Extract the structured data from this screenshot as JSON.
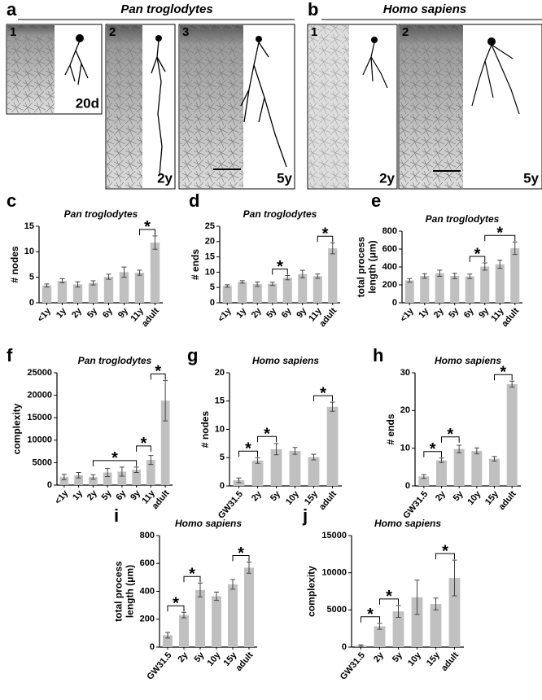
{
  "figure": {
    "panels": [
      {
        "letter": "a",
        "title": "Pan troglodytes"
      },
      {
        "letter": "b",
        "title": "Homo sapiens"
      }
    ],
    "images": [
      {
        "number": "1",
        "age": "20d"
      },
      {
        "number": "2",
        "age": "2y"
      },
      {
        "number": "3",
        "age": "5y"
      },
      {
        "number": "1",
        "age": "2y"
      },
      {
        "number": "2",
        "age": "5y"
      }
    ]
  },
  "chart_data": [
    {
      "type": "bar",
      "panel": "c",
      "title": "Pan troglodytes",
      "y_label": "# nodes",
      "categories": [
        "<1y",
        "1y",
        "2y",
        "5y",
        "6y",
        "9y",
        "11y",
        "adult"
      ],
      "values": [
        3.4,
        4.3,
        3.6,
        3.9,
        5.1,
        6.0,
        5.9,
        11.8
      ],
      "errors": [
        0.3,
        0.4,
        0.5,
        0.4,
        0.5,
        1.0,
        0.5,
        1.3
      ],
      "color": "#c0c0c0",
      "ylim": [
        0,
        15
      ],
      "yticks": [
        0,
        5,
        10,
        15
      ],
      "annotations": [
        {
          "from": "11y",
          "to": "adult",
          "text": "*"
        }
      ]
    },
    {
      "type": "bar",
      "panel": "d",
      "title": "Pan troglodytes",
      "y_label": "# ends",
      "categories": [
        "<1y",
        "1y",
        "2y",
        "5y",
        "6y",
        "9y",
        "11y",
        "adult"
      ],
      "values": [
        5.5,
        6.8,
        6.1,
        6.2,
        8.2,
        9.4,
        8.7,
        17.8
      ],
      "errors": [
        0.4,
        0.4,
        0.7,
        0.5,
        0.7,
        1.2,
        0.7,
        1.8
      ],
      "color": "#c0c0c0",
      "ylim": [
        0,
        25
      ],
      "yticks": [
        0,
        5,
        10,
        15,
        20,
        25
      ],
      "annotations": [
        {
          "from": "5y",
          "to": "6y",
          "text": "*"
        },
        {
          "from": "11y",
          "to": "adult",
          "text": "*"
        }
      ]
    },
    {
      "type": "bar",
      "panel": "e",
      "title": "Pan troglodytes",
      "y_label": [
        "total process",
        "length (μm)"
      ],
      "categories": [
        "<1y",
        "1y",
        "2y",
        "5y",
        "6y",
        "9y",
        "11y",
        "adult"
      ],
      "values": [
        250,
        300,
        330,
        300,
        295,
        405,
        430,
        610
      ],
      "errors": [
        20,
        25,
        35,
        30,
        25,
        40,
        45,
        70
      ],
      "color": "#c0c0c0",
      "ylim": [
        0,
        800
      ],
      "yticks": [
        0,
        200,
        400,
        600,
        800
      ],
      "annotations": [
        {
          "from": "6y",
          "to": "9y",
          "text": "*"
        },
        {
          "from": "9y",
          "to": "adult",
          "text": "*"
        }
      ]
    },
    {
      "type": "bar",
      "panel": "f",
      "title": "Pan troglodytes",
      "y_label": "complexity",
      "categories": [
        "<1y",
        "1y",
        "2y",
        "5y",
        "6y",
        "9y",
        "11y",
        "adult"
      ],
      "values": [
        1800,
        2200,
        1800,
        2800,
        3000,
        3400,
        5600,
        18800
      ],
      "errors": [
        600,
        600,
        500,
        900,
        1000,
        600,
        1000,
        4500
      ],
      "color": "#c0c0c0",
      "ylim": [
        0,
        25000
      ],
      "yticks": [
        0,
        5000,
        10000,
        15000,
        20000,
        25000
      ],
      "annotations": [
        {
          "from": "2y",
          "to": "9y",
          "text": "*"
        },
        {
          "from": "9y",
          "to": "11y",
          "text": "*"
        },
        {
          "from": "11y",
          "to": "adult",
          "text": "*"
        }
      ]
    },
    {
      "type": "bar",
      "panel": "g",
      "title": "Homo sapiens",
      "y_label": "# nodes",
      "categories": [
        "GW31.5",
        "2y",
        "5y",
        "10y",
        "15y",
        "adult"
      ],
      "values": [
        1.0,
        4.5,
        6.5,
        6.2,
        5.1,
        14.0
      ],
      "errors": [
        0.4,
        0.5,
        1.0,
        0.6,
        0.5,
        0.8
      ],
      "color": "#c0c0c0",
      "ylim": [
        0,
        20
      ],
      "yticks": [
        0,
        5,
        10,
        15,
        20
      ],
      "annotations": [
        {
          "from": "GW31.5",
          "to": "2y",
          "text": "*"
        },
        {
          "from": "2y",
          "to": "5y",
          "text": "*"
        },
        {
          "from": "15y",
          "to": "adult",
          "text": "*"
        }
      ]
    },
    {
      "type": "bar",
      "panel": "h",
      "title": "Homo sapiens",
      "y_label": "# ends",
      "categories": [
        "GW31.5",
        "2y",
        "5y",
        "10y",
        "15y",
        "adult"
      ],
      "values": [
        2.5,
        6.8,
        9.8,
        9.3,
        7.2,
        27
      ],
      "errors": [
        0.5,
        0.6,
        1.0,
        0.8,
        0.6,
        0.8
      ],
      "color": "#c0c0c0",
      "ylim": [
        0,
        30
      ],
      "yticks": [
        0,
        10,
        20,
        30
      ],
      "annotations": [
        {
          "from": "GW31.5",
          "to": "2y",
          "text": "*"
        },
        {
          "from": "2y",
          "to": "5y",
          "text": "*"
        },
        {
          "from": "15y",
          "to": "adult",
          "text": "*"
        }
      ]
    },
    {
      "type": "bar",
      "panel": "i",
      "title": "Homo sapiens",
      "y_label": [
        "total process",
        "length (μm)"
      ],
      "categories": [
        "GW31.5",
        "2y",
        "5y",
        "10y",
        "15y",
        "adult"
      ],
      "values": [
        85,
        230,
        410,
        365,
        450,
        570
      ],
      "errors": [
        20,
        20,
        50,
        30,
        35,
        40
      ],
      "color": "#c0c0c0",
      "ylim": [
        0,
        800
      ],
      "yticks": [
        0,
        200,
        400,
        600,
        800
      ],
      "annotations": [
        {
          "from": "GW31.5",
          "to": "2y",
          "text": "*"
        },
        {
          "from": "2y",
          "to": "5y",
          "text": "*"
        },
        {
          "from": "15y",
          "to": "adult",
          "text": "*"
        }
      ]
    },
    {
      "type": "bar",
      "panel": "j",
      "title": "Homo sapiens",
      "y_label": "complexity",
      "categories": [
        "GW31.5",
        "2y",
        "5y",
        "10y",
        "15y",
        "adult"
      ],
      "values": [
        200,
        2800,
        4800,
        6700,
        5800,
        9300
      ],
      "errors": [
        100,
        400,
        800,
        2300,
        800,
        2400
      ],
      "color": "#c0c0c0",
      "ylim": [
        0,
        15000
      ],
      "yticks": [
        0,
        5000,
        10000,
        15000
      ],
      "annotations": [
        {
          "from": "GW31.5",
          "to": "2y",
          "text": "*"
        },
        {
          "from": "2y",
          "to": "5y",
          "text": "*"
        },
        {
          "from": "15y",
          "to": "adult",
          "text": "*"
        }
      ]
    }
  ]
}
